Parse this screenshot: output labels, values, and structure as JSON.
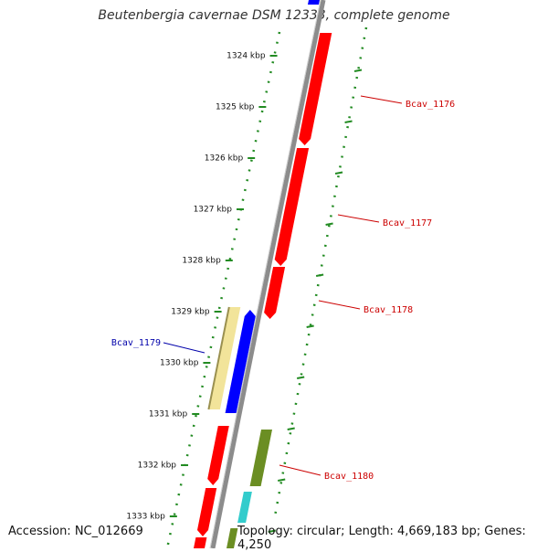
{
  "title": "Beutenbergia cavernae DSM 12333, complete genome",
  "footer": {
    "accession": "Accession: NC_012669",
    "summary": "Topology: circular; Length: 4,669,183 bp; Genes: 4,250"
  },
  "colors": {
    "background": "#ffffff",
    "backbone": "#8c8c8c",
    "forward_gene": "#ff0000",
    "reverse_gene": "#0000ff",
    "feature_tan": "#f2e49a",
    "feature_olive": "#6b8e23",
    "feature_cyan": "#33cccc",
    "scale_ticks": "#228b22",
    "forward_label": "#cc0000",
    "reverse_label": "#0000aa"
  },
  "scale_labels": [
    {
      "kbp": 1324,
      "text": "1324 kbp"
    },
    {
      "kbp": 1325,
      "text": "1325 kbp"
    },
    {
      "kbp": 1326,
      "text": "1326 kbp"
    },
    {
      "kbp": 1327,
      "text": "1327 kbp"
    },
    {
      "kbp": 1328,
      "text": "1328 kbp"
    },
    {
      "kbp": 1329,
      "text": "1329 kbp"
    },
    {
      "kbp": 1330,
      "text": "1330 kbp"
    },
    {
      "kbp": 1331,
      "text": "1331 kbp"
    },
    {
      "kbp": 1332,
      "text": "1332 kbp"
    },
    {
      "kbp": 1333,
      "text": "1333 kbp"
    }
  ],
  "gene_labels": [
    {
      "name": "Bcav_1176",
      "strand": "forward"
    },
    {
      "name": "Bcav_1177",
      "strand": "forward"
    },
    {
      "name": "Bcav_1178",
      "strand": "forward"
    },
    {
      "name": "Bcav_1179",
      "strand": "reverse"
    },
    {
      "name": "Bcav_1180",
      "strand": "forward"
    }
  ]
}
